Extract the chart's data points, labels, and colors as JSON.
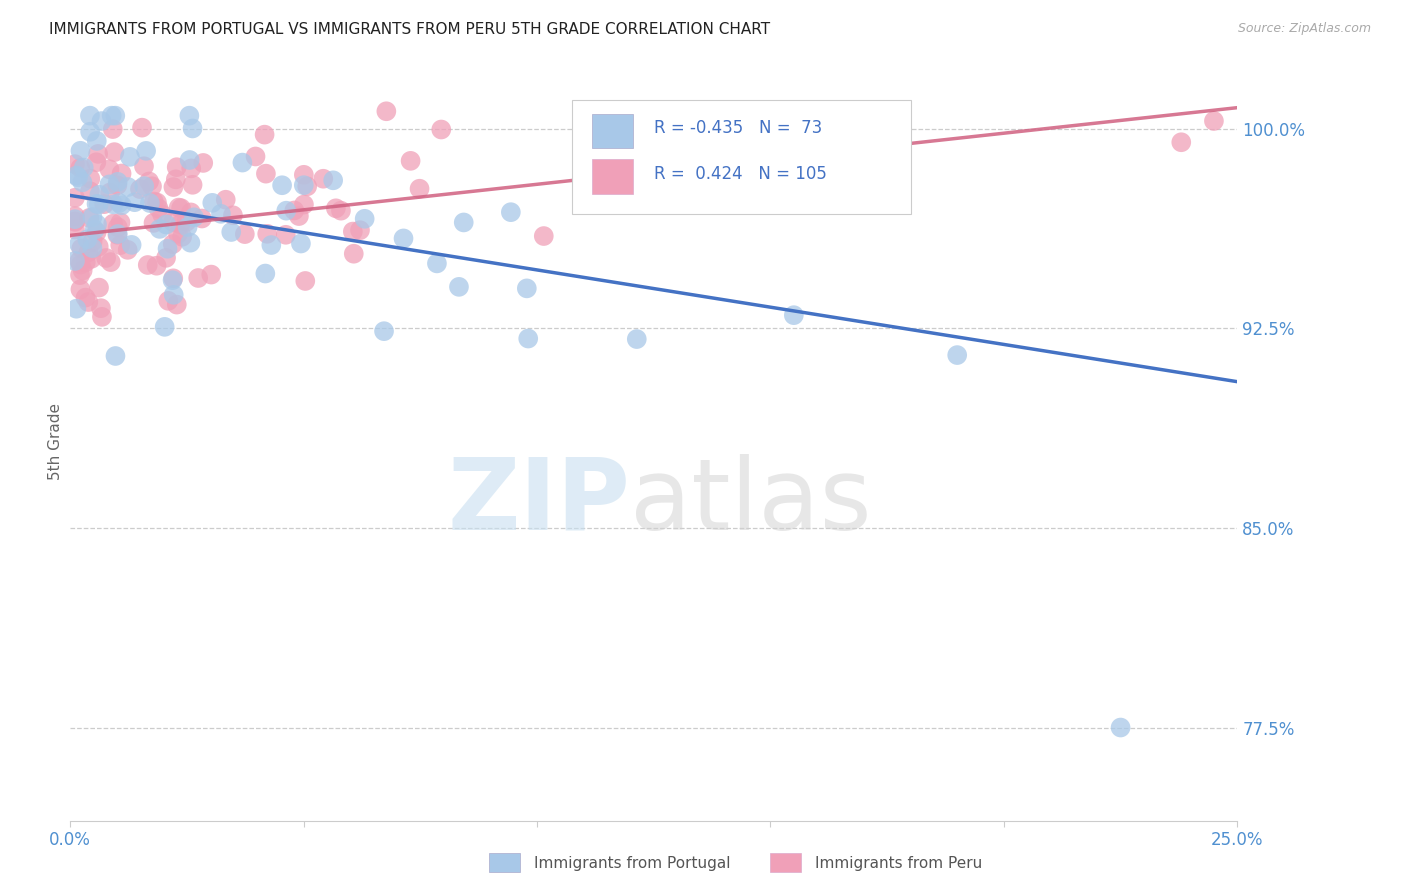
{
  "title": "IMMIGRANTS FROM PORTUGAL VS IMMIGRANTS FROM PERU 5TH GRADE CORRELATION CHART",
  "source": "Source: ZipAtlas.com",
  "ylabel": "5th Grade",
  "xlim": [
    0.0,
    0.25
  ],
  "ylim": [
    0.74,
    1.025
  ],
  "yticks": [
    0.775,
    0.85,
    0.925,
    1.0
  ],
  "ytick_labels": [
    "77.5%",
    "85.0%",
    "92.5%",
    "100.0%"
  ],
  "xticks": [
    0.0,
    0.05,
    0.1,
    0.15,
    0.2,
    0.25
  ],
  "portugal_R": -0.435,
  "portugal_N": 73,
  "peru_R": 0.424,
  "peru_N": 105,
  "portugal_color": "#a8c8e8",
  "peru_color": "#f0a0b8",
  "portugal_line_color": "#4472c4",
  "peru_line_color": "#d06080",
  "tick_label_color": "#5090d0",
  "legend_portugal_label": "Immigrants from Portugal",
  "legend_peru_label": "Immigrants from Peru",
  "port_line_x0": 0.0,
  "port_line_y0": 0.975,
  "port_line_x1": 0.25,
  "port_line_y1": 0.905,
  "peru_line_x0": 0.0,
  "peru_line_y0": 0.96,
  "peru_line_x1": 0.25,
  "peru_line_y1": 1.008
}
